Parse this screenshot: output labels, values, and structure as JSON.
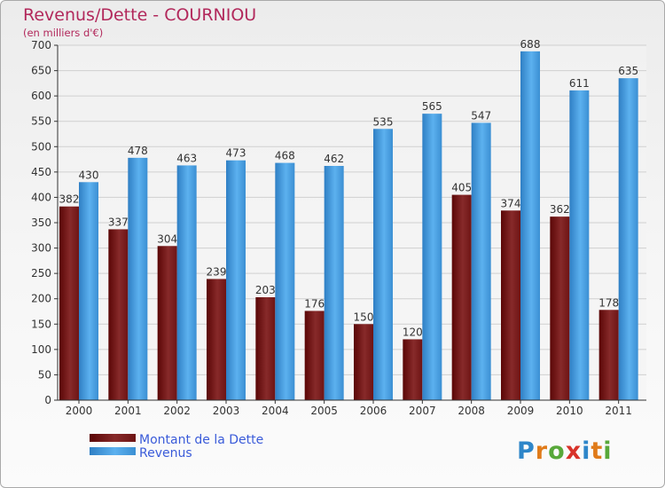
{
  "title": "Revenus/Dette - COURNIOU",
  "subtitle": "(en milliers d'€)",
  "legend": {
    "items": [
      "Montant de la Dette",
      "Revenus"
    ]
  },
  "logo": "Proxiti",
  "colors": {
    "title": "#b2285b",
    "legend_text": "#3a5bd9",
    "dette": "#6b1010",
    "revenus": "#3c93d8"
  },
  "chart_data": {
    "type": "bar",
    "title": "Revenus/Dette - COURNIOU",
    "subtitle": "(en milliers d'€)",
    "categories": [
      "2000",
      "2001",
      "2002",
      "2003",
      "2004",
      "2005",
      "2006",
      "2007",
      "2008",
      "2009",
      "2010",
      "2011"
    ],
    "series": [
      {
        "name": "Montant de la Dette",
        "values": [
          382,
          337,
          304,
          239,
          203,
          176,
          150,
          120,
          405,
          374,
          362,
          178
        ]
      },
      {
        "name": "Revenus",
        "values": [
          430,
          478,
          463,
          473,
          468,
          462,
          535,
          565,
          547,
          688,
          611,
          635
        ]
      }
    ],
    "ylim": [
      0,
      700
    ],
    "yticks": [
      0,
      50,
      100,
      150,
      200,
      250,
      300,
      350,
      400,
      450,
      500,
      550,
      600,
      650,
      700
    ],
    "grid": true,
    "legend_position": "bottom-left"
  }
}
